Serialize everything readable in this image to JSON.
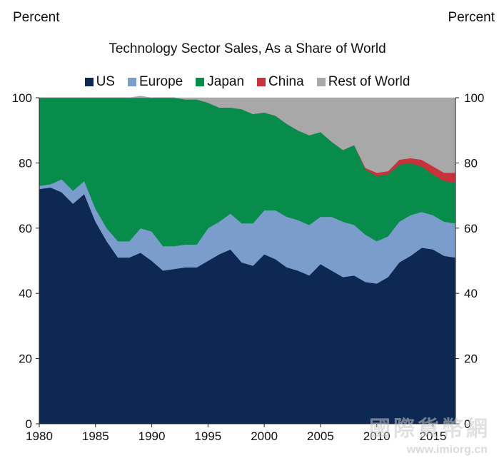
{
  "watermark": {
    "text": "國際貨幣網",
    "url": "www.imiorg.cn"
  },
  "chart_data": {
    "type": "area",
    "stacked": true,
    "title": "Technology Sector Sales, As a Share of World",
    "ylabel_left": "Percent",
    "ylabel_right": "Percent",
    "xlabel": "",
    "xlim": [
      1980,
      2017
    ],
    "ylim": [
      0,
      100
    ],
    "xticks": [
      1980,
      1985,
      1990,
      1995,
      2000,
      2005,
      2010,
      2015
    ],
    "yticks": [
      0,
      20,
      40,
      60,
      80,
      100
    ],
    "grid": false,
    "legend_position": "top",
    "x": [
      1980,
      1981,
      1982,
      1983,
      1984,
      1985,
      1986,
      1987,
      1988,
      1989,
      1990,
      1991,
      1992,
      1993,
      1994,
      1995,
      1996,
      1997,
      1998,
      1999,
      2000,
      2001,
      2002,
      2003,
      2004,
      2005,
      2006,
      2007,
      2008,
      2009,
      2010,
      2011,
      2012,
      2013,
      2014,
      2015,
      2016,
      2017
    ],
    "series": [
      {
        "name": "US",
        "color": "#0c2853",
        "values": [
          72,
          72.5,
          71,
          67.5,
          70.5,
          62,
          56,
          51,
          51,
          52.5,
          50,
          47,
          47.5,
          48,
          48,
          50,
          52,
          53.5,
          49.5,
          48.5,
          52,
          50.5,
          48,
          47,
          45.5,
          49,
          47,
          45,
          45.5,
          43.5,
          43,
          45,
          49.5,
          51.5,
          54,
          53.5,
          51.5,
          51
        ]
      },
      {
        "name": "Europe",
        "color": "#7b9dcc",
        "values": [
          1,
          1,
          4,
          4,
          4,
          4,
          4,
          5,
          5,
          7.5,
          9,
          7.5,
          7,
          7,
          7,
          10,
          10,
          11,
          12,
          13,
          13.5,
          15,
          15.5,
          15.5,
          15.5,
          14.5,
          16.5,
          17,
          15.5,
          14.5,
          13,
          12.5,
          12.5,
          12.5,
          11,
          10.5,
          10.5,
          10.5
        ]
      },
      {
        "name": "Japan",
        "color": "#078c4b",
        "values": [
          27,
          26.5,
          25,
          28.5,
          25.5,
          34,
          40,
          44,
          44,
          40,
          41,
          45.5,
          45.5,
          44.5,
          44.5,
          38.5,
          35,
          32.5,
          35,
          33.5,
          30,
          29,
          28.5,
          27.5,
          27.5,
          26,
          23,
          22,
          24.5,
          20,
          20,
          19,
          17.5,
          16,
          14,
          12.5,
          12.5,
          12.5
        ]
      },
      {
        "name": "China",
        "color": "#c8333b",
        "values": [
          0,
          0,
          0,
          0,
          0,
          0,
          0,
          0,
          0,
          0,
          0,
          0,
          0,
          0,
          0,
          0,
          0,
          0,
          0,
          0,
          0,
          0,
          0,
          0,
          0,
          0,
          0,
          0,
          0,
          0.5,
          1,
          1,
          1.5,
          1.5,
          2,
          2.5,
          2.5,
          3
        ]
      },
      {
        "name": "Rest of World",
        "color": "#a8a8a8",
        "values": [
          0,
          0,
          0,
          0,
          0,
          0,
          0,
          0,
          0,
          0.5,
          0,
          0,
          0,
          0.5,
          0.5,
          1.5,
          3,
          3,
          3.5,
          5,
          4.5,
          5.5,
          8,
          10,
          11.5,
          10.5,
          13.5,
          16,
          14.5,
          21.5,
          23,
          22.5,
          19,
          18.5,
          19,
          21,
          23,
          23
        ]
      }
    ]
  }
}
